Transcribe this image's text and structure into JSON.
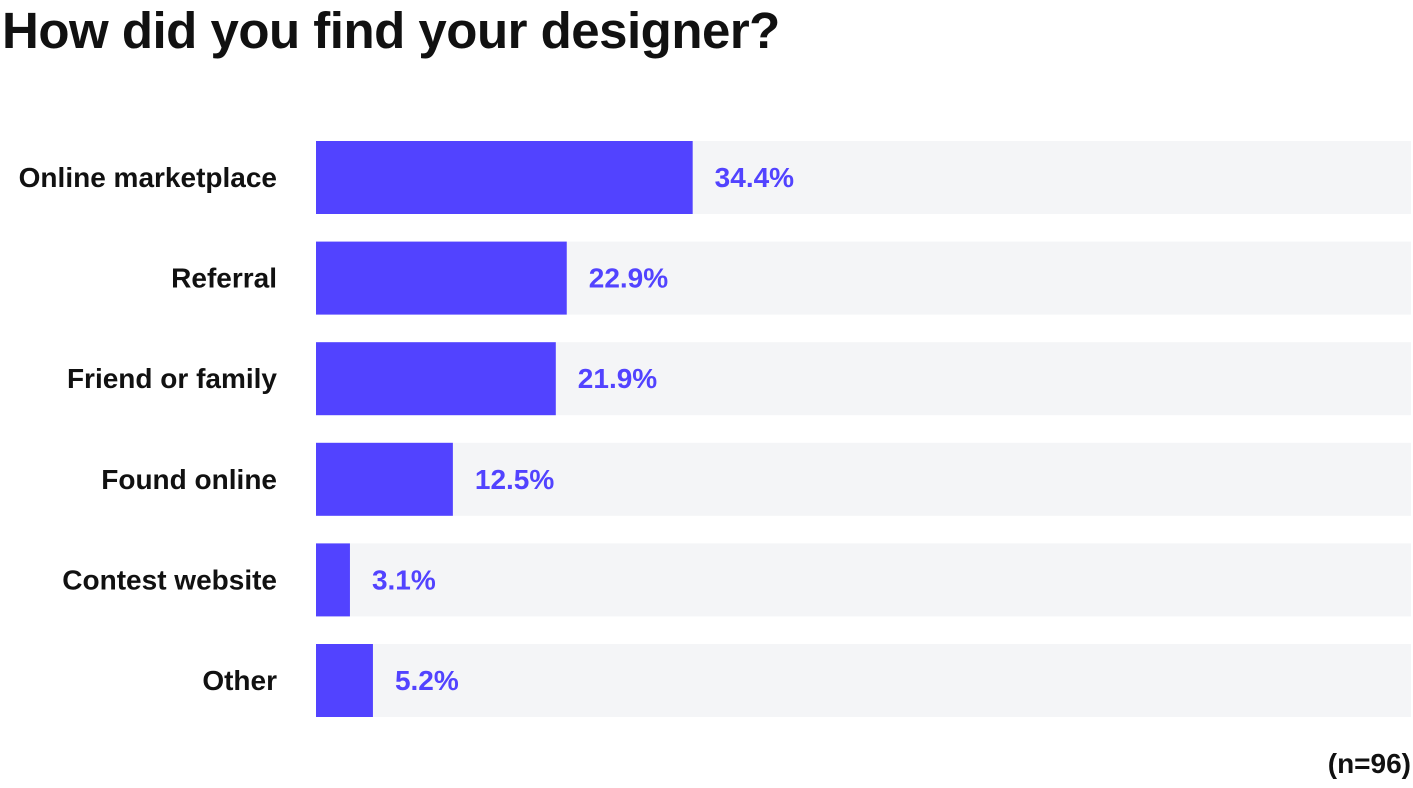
{
  "chart_data": {
    "type": "bar",
    "orientation": "horizontal",
    "title": "How did you find your designer?",
    "categories": [
      "Online marketplace",
      "Referral",
      "Friend or family",
      "Found online",
      "Contest website",
      "Other"
    ],
    "values": [
      34.4,
      22.9,
      21.9,
      12.5,
      3.1,
      5.2
    ],
    "value_labels": [
      "34.4%",
      "22.9%",
      "21.9%",
      "12.5%",
      "3.1%",
      "5.2%"
    ],
    "unit": "%",
    "xlim": [
      0,
      100
    ],
    "xlabel": "",
    "ylabel": "",
    "grid": false,
    "legend": "none",
    "note": "(n=96)",
    "colors": {
      "bar": "#5243ff",
      "track": "#f4f5f7",
      "value_text": "#5243ff",
      "text": "#111111"
    }
  }
}
